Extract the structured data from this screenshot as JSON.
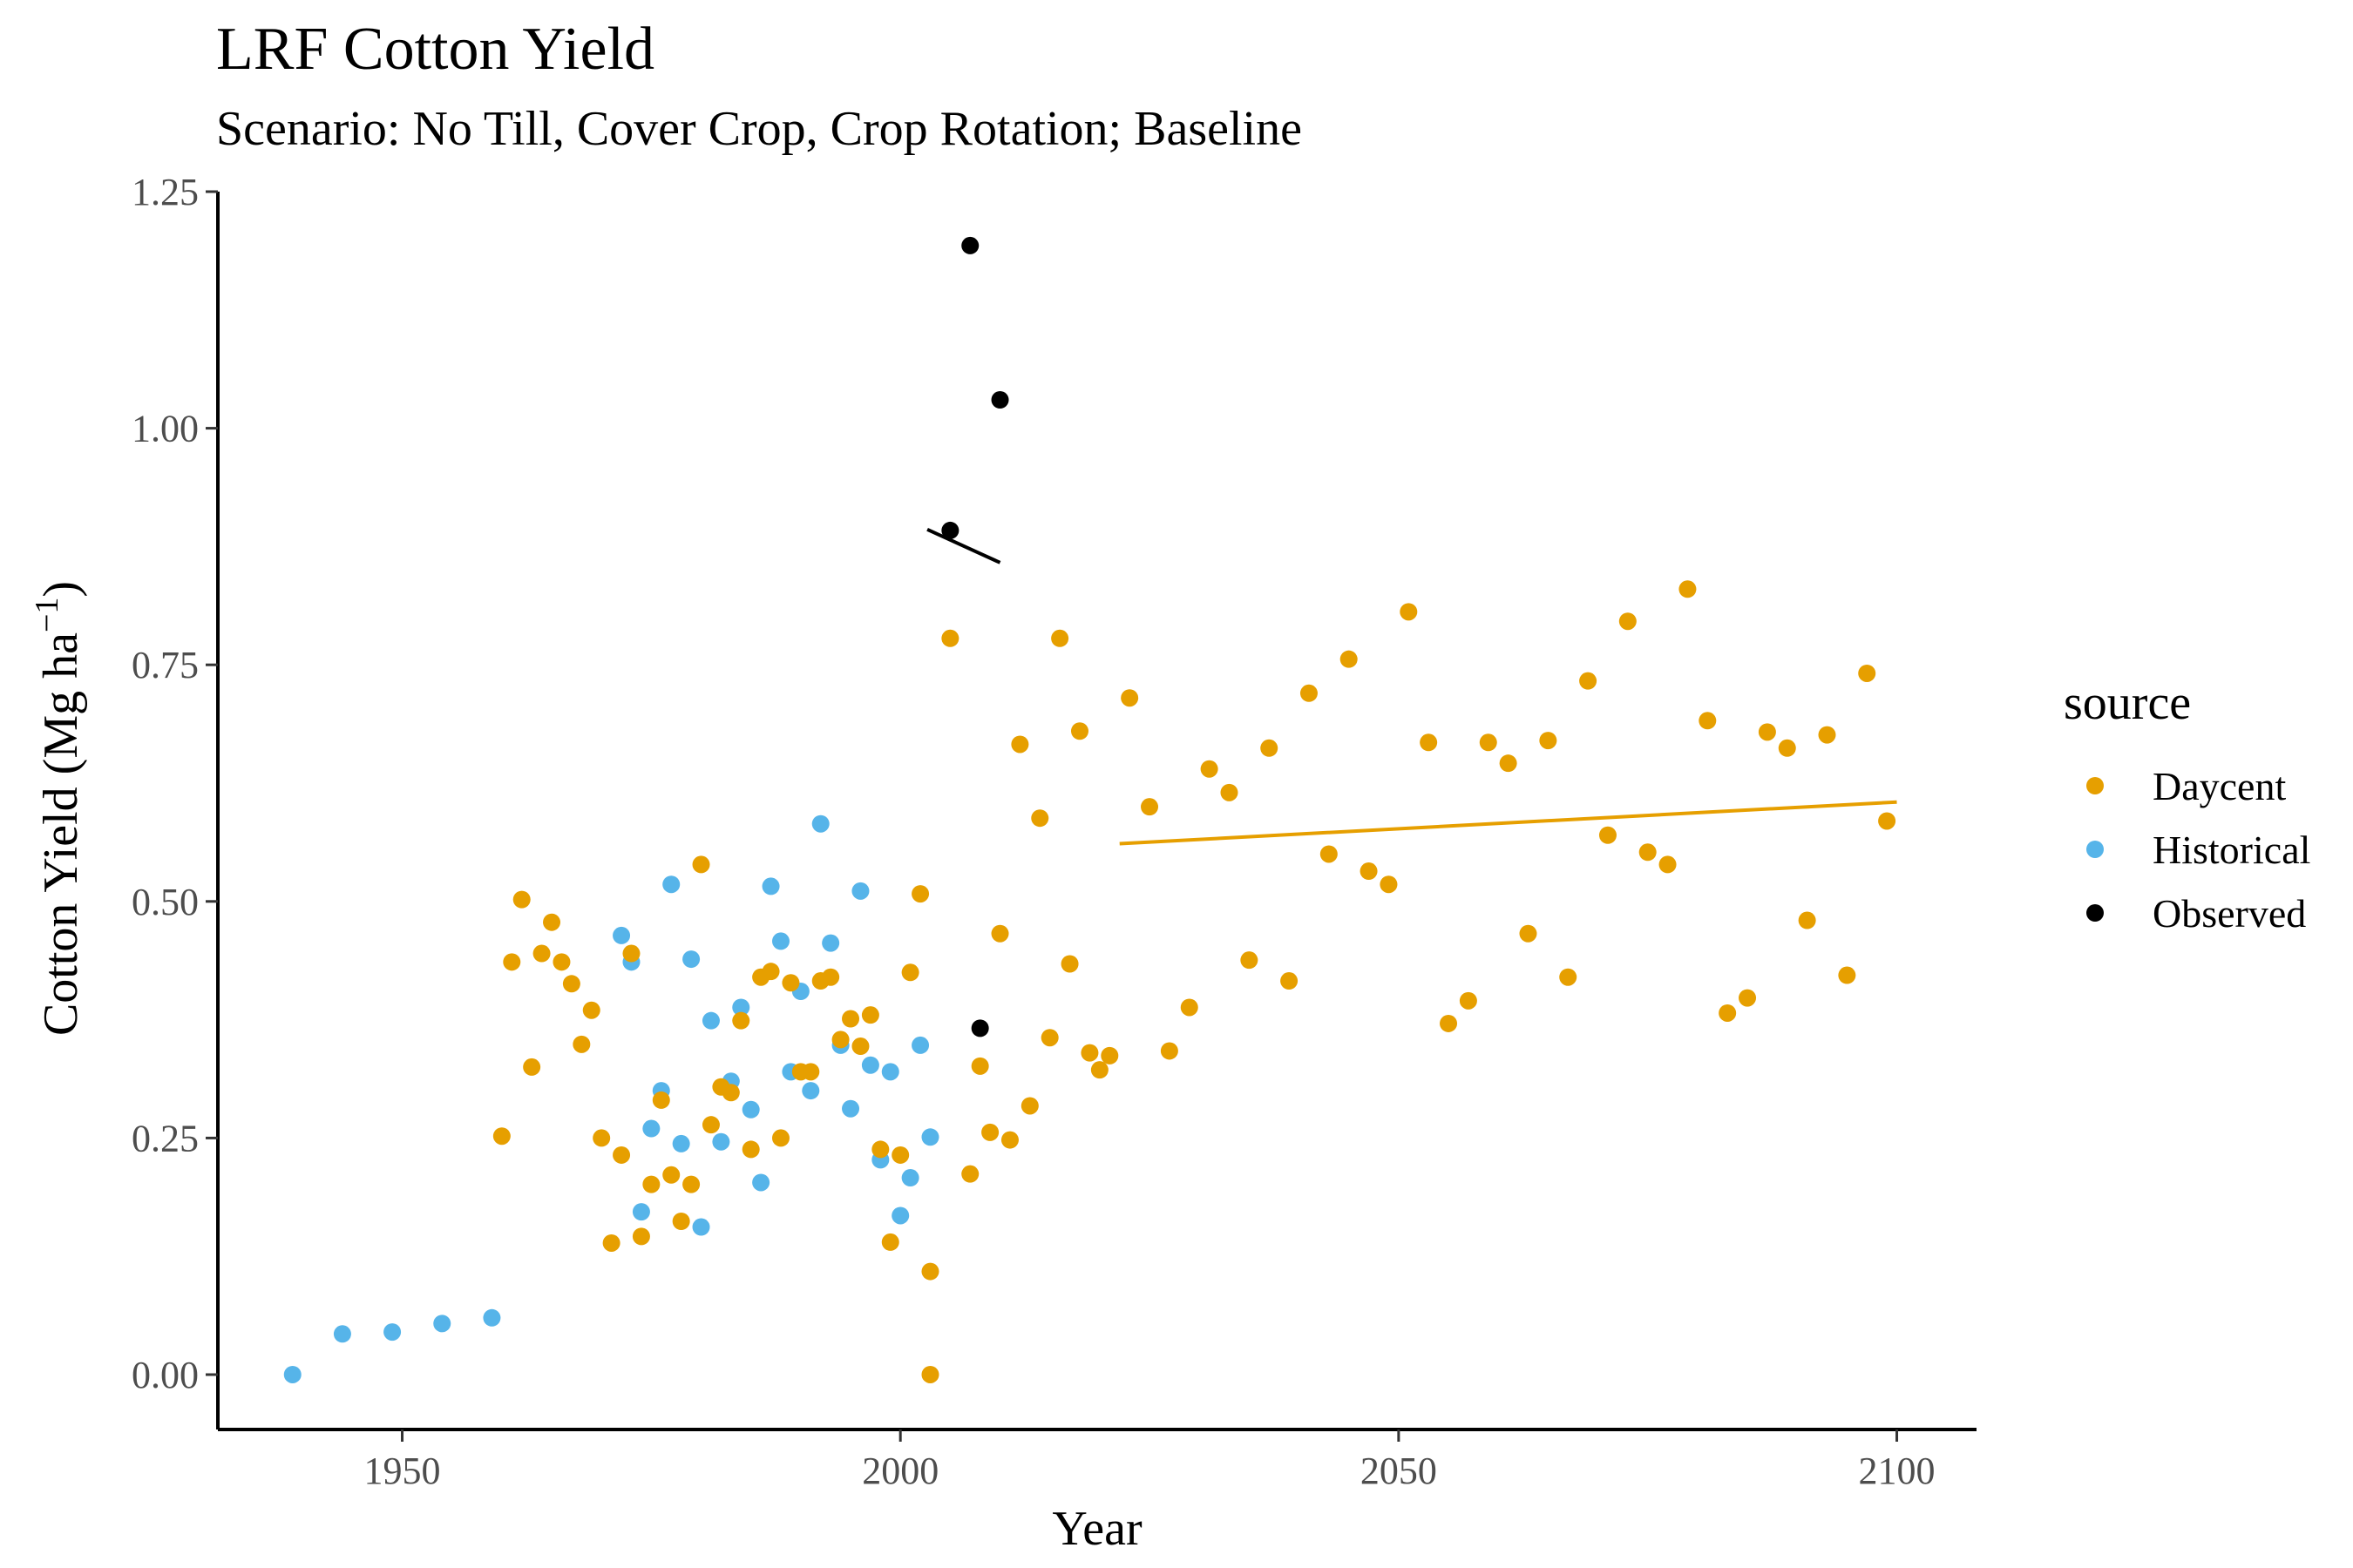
{
  "chart_data": {
    "type": "scatter",
    "title": "LRF Cotton Yield",
    "subtitle": "Scenario: No Till, Cover Crop, Crop Rotation; Baseline",
    "xlabel": "Year",
    "ylabel": "Cotton Yield (Mg ha",
    "ylabel_superscript": "−1",
    "ylabel_close": ")",
    "xlim": [
      1931.5,
      2108
    ],
    "ylim": [
      -0.058,
      1.25
    ],
    "x_ticks": [
      1950,
      2000,
      2050,
      2100
    ],
    "x_tick_labels": [
      "1950",
      "2000",
      "2050",
      "2100"
    ],
    "y_ticks": [
      0,
      0.25,
      0.5,
      0.75,
      1.0,
      1.25
    ],
    "y_tick_labels": [
      "0.00",
      "0.25",
      "0.50",
      "0.75",
      "1.00",
      "1.25"
    ],
    "grid": false,
    "legend": {
      "title": "source",
      "placement": "right"
    },
    "series": [
      {
        "name": "Daycent",
        "color": "#E69F00",
        "x": [
          1960,
          1961,
          1962,
          1963,
          1964,
          1965,
          1966,
          1967,
          1968,
          1969,
          1970,
          1971,
          1972,
          1973,
          1974,
          1975,
          1976,
          1977,
          1978,
          1979,
          1980,
          1981,
          1982,
          1983,
          1984,
          1985,
          1986,
          1987,
          1988,
          1989,
          1990,
          1991,
          1992,
          1993,
          1994,
          1995,
          1996,
          1997,
          1998,
          1999,
          2000,
          2001,
          2002,
          2003,
          2003,
          2005,
          2007,
          2008,
          2009,
          2010,
          2011,
          2012,
          2013,
          2014,
          2015,
          2016,
          2017,
          2018,
          2019,
          2020,
          2021,
          2023,
          2025,
          2027,
          2029,
          2031,
          2033,
          2035,
          2037,
          2039,
          2041,
          2043,
          2045,
          2047,
          2049,
          2051,
          2053,
          2055,
          2057,
          2059,
          2061,
          2063,
          2065,
          2067,
          2069,
          2071,
          2073,
          2075,
          2077,
          2079,
          2081,
          2083,
          2085,
          2087,
          2089,
          2091,
          2093,
          2095,
          2097,
          2099
        ],
        "y": [
          0.252,
          0.436,
          0.502,
          0.325,
          0.445,
          0.478,
          0.436,
          0.413,
          0.349,
          0.385,
          0.25,
          0.139,
          0.232,
          0.445,
          0.146,
          0.201,
          0.29,
          0.211,
          0.162,
          0.201,
          0.539,
          0.264,
          0.304,
          0.298,
          0.374,
          0.238,
          0.42,
          0.426,
          0.25,
          0.414,
          0.32,
          0.32,
          0.416,
          0.42,
          0.354,
          0.376,
          0.347,
          0.38,
          0.238,
          0.14,
          0.232,
          0.425,
          0.508,
          0.109,
          0.0,
          0.778,
          0.212,
          0.326,
          0.256,
          0.466,
          0.248,
          0.666,
          0.284,
          0.588,
          0.356,
          0.778,
          0.434,
          0.68,
          0.34,
          0.322,
          0.337,
          0.715,
          0.6,
          0.342,
          0.388,
          0.64,
          0.615,
          0.438,
          0.662,
          0.416,
          0.72,
          0.55,
          0.756,
          0.532,
          0.518,
          0.806,
          0.668,
          0.371,
          0.395,
          0.668,
          0.646,
          0.466,
          0.67,
          0.42,
          0.733,
          0.57,
          0.796,
          0.552,
          0.539,
          0.83,
          0.691,
          0.382,
          0.398,
          0.679,
          0.662,
          0.48,
          0.676,
          0.422,
          0.741,
          0.585
        ],
        "trend": {
          "x": [
            2022,
            2100
          ],
          "y": [
            0.561,
            0.605
          ]
        }
      },
      {
        "name": "Historical",
        "color": "#56B4E9",
        "x": [
          1939,
          1944,
          1949,
          1954,
          1959,
          1972,
          1973,
          1974,
          1975,
          1976,
          1977,
          1978,
          1979,
          1980,
          1981,
          1982,
          1983,
          1984,
          1985,
          1986,
          1987,
          1988,
          1989,
          1990,
          1991,
          1992,
          1993,
          1994,
          1995,
          1996,
          1997,
          1998,
          1999,
          2000,
          2001,
          2002,
          2003
        ],
        "y": [
          0.0,
          0.043,
          0.045,
          0.054,
          0.06,
          0.464,
          0.436,
          0.172,
          0.26,
          0.3,
          0.518,
          0.244,
          0.439,
          0.156,
          0.374,
          0.246,
          0.31,
          0.388,
          0.28,
          0.203,
          0.516,
          0.458,
          0.32,
          0.405,
          0.3,
          0.582,
          0.456,
          0.348,
          0.281,
          0.511,
          0.327,
          0.227,
          0.32,
          0.168,
          0.208,
          0.348,
          0.251
        ]
      },
      {
        "name": "Observed",
        "color": "#000000",
        "x": [
          2005,
          2007,
          2008,
          2010
        ],
        "y": [
          0.892,
          1.193,
          0.366,
          1.03
        ],
        "trend": {
          "x": [
            2002.7,
            2010
          ],
          "y": [
            0.893,
            0.858
          ]
        }
      }
    ]
  }
}
